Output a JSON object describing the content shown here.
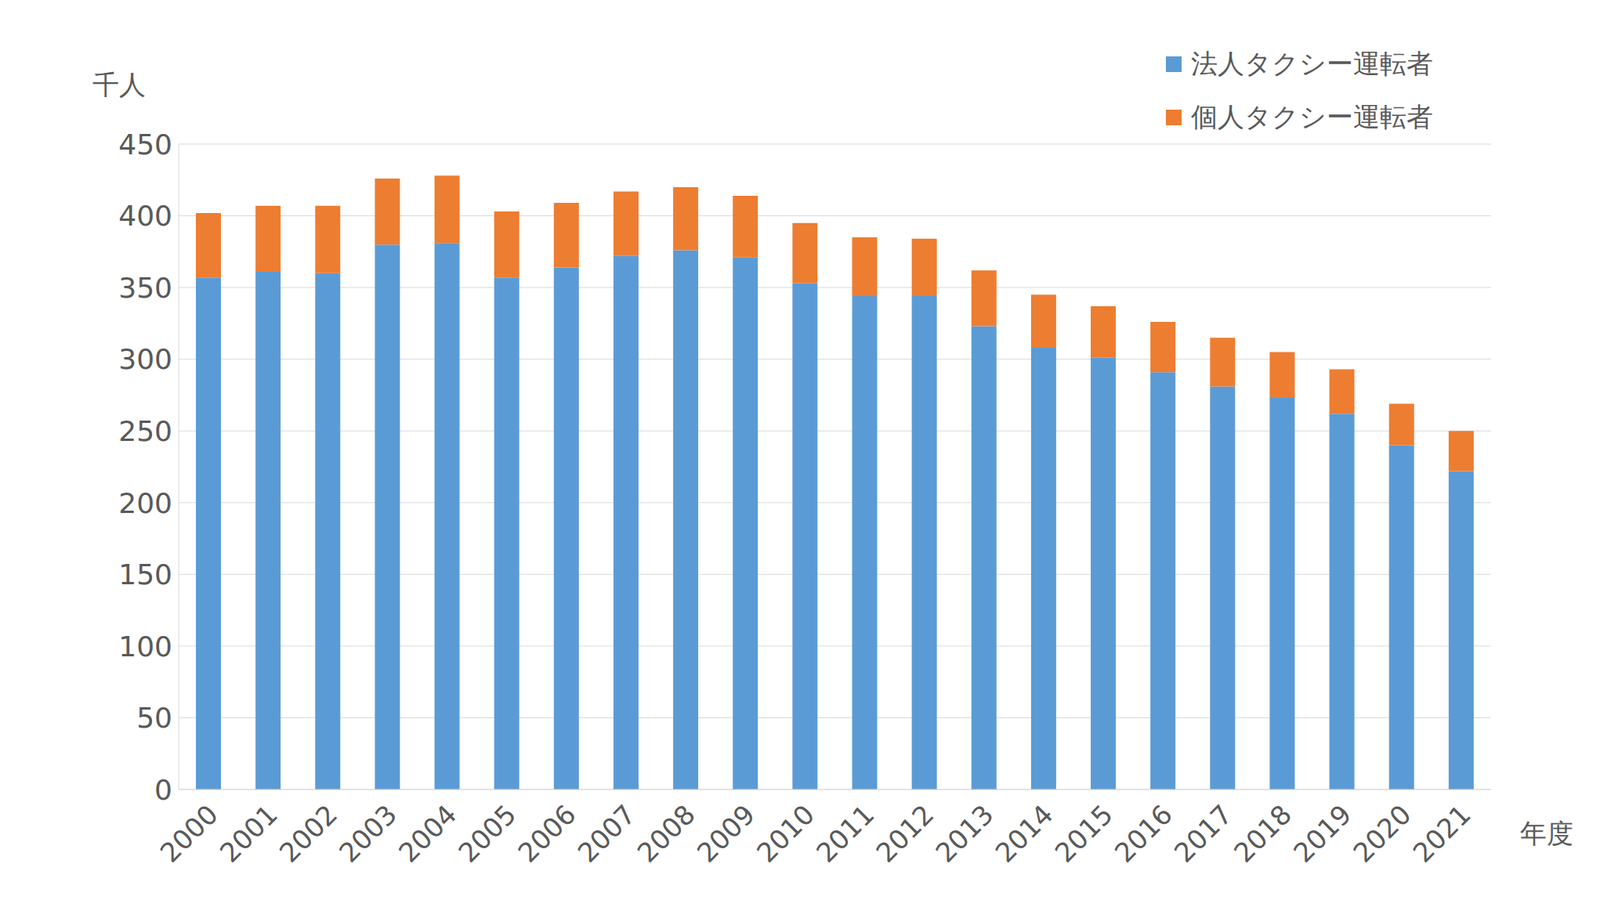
{
  "chart_data": {
    "type": "bar",
    "stacked": true,
    "y_label": "千人",
    "x_label": "年度",
    "categories": [
      "2000",
      "2001",
      "2002",
      "2003",
      "2004",
      "2005",
      "2006",
      "2007",
      "2008",
      "2009",
      "2010",
      "2011",
      "2012",
      "2013",
      "2014",
      "2015",
      "2016",
      "2017",
      "2018",
      "2019",
      "2020",
      "2021"
    ],
    "series": [
      {
        "name": "法人タクシー運転者",
        "color": "#5b9bd5",
        "values": [
          357,
          361,
          360,
          380,
          381,
          357,
          364,
          372,
          376,
          371,
          353,
          344,
          344,
          323,
          308,
          301,
          291,
          281,
          273,
          262,
          240,
          222
        ]
      },
      {
        "name": "個人タクシー運転者",
        "color": "#ed7d31",
        "values": [
          45,
          46,
          47,
          46,
          47,
          46,
          45,
          45,
          44,
          43,
          42,
          41,
          40,
          39,
          37,
          36,
          35,
          34,
          32,
          31,
          29,
          28
        ]
      }
    ],
    "ylim": [
      0,
      450
    ],
    "yticks": [
      0,
      50,
      100,
      150,
      200,
      250,
      300,
      350,
      400,
      450
    ],
    "grid": true,
    "legend": "top-right"
  }
}
